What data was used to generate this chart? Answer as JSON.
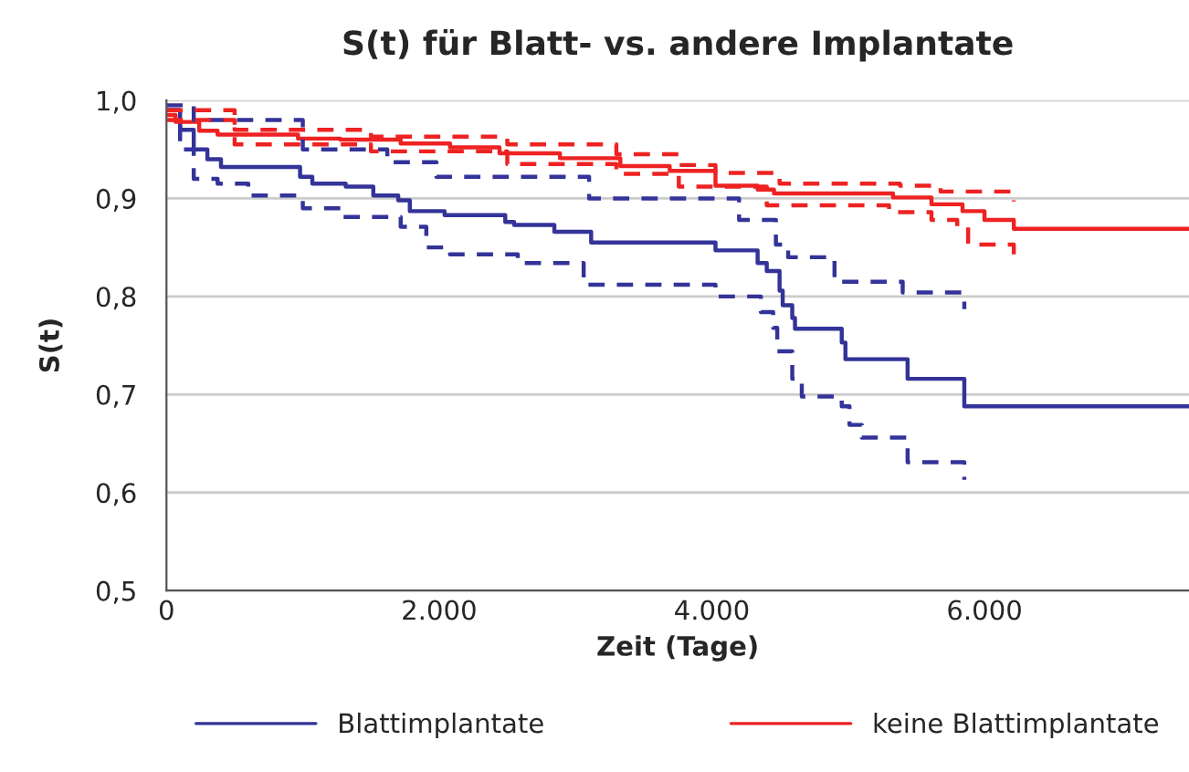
{
  "chart_data": {
    "type": "step",
    "title": "S(t) für Blatt- vs. andere Implantate",
    "xlabel": "Zeit (Tage)",
    "ylabel": "S(t)",
    "xlim": [
      0,
      7500
    ],
    "xticks": [
      0,
      {
        "value": 2000,
        "label": "2.000"
      },
      {
        "value": 4000,
        "label": "4.000"
      },
      {
        "value": 6000,
        "label": "6.000"
      }
    ],
    "ylim": [
      0.5,
      1.0
    ],
    "yticks": [
      {
        "value": 0.5,
        "label": "0,5"
      },
      {
        "value": 0.6,
        "label": "0,6"
      },
      {
        "value": 0.7,
        "label": "0,7"
      },
      {
        "value": 0.8,
        "label": "0,8"
      },
      {
        "value": 0.9,
        "label": "0,9"
      },
      {
        "value": 1.0,
        "label": "1,0"
      }
    ],
    "grid": "y",
    "legend": "bottom",
    "series": [
      {
        "name": "Blattimplantate",
        "color": "#333399",
        "line_style": "solid",
        "x": [
          0,
          100,
          200,
          300,
          400,
          980,
          1070,
          1315,
          1517,
          1700,
          1785,
          2040,
          2485,
          2550,
          2845,
          3115,
          4027,
          4336,
          4403,
          4497,
          4520,
          4590,
          4610,
          4953,
          4980,
          5436,
          5852,
          7500
        ],
        "values": [
          0.99,
          0.97,
          0.95,
          0.94,
          0.932,
          0.922,
          0.915,
          0.912,
          0.903,
          0.898,
          0.887,
          0.883,
          0.876,
          0.873,
          0.866,
          0.855,
          0.847,
          0.834,
          0.826,
          0.806,
          0.791,
          0.778,
          0.767,
          0.753,
          0.736,
          0.716,
          0.688,
          0.688
        ]
      },
      {
        "name": "keine Blattimplantate",
        "color": "#ee2222",
        "line_style": "solid",
        "x": [
          0,
          67,
          240,
          375,
          965,
          1275,
          1718,
          2080,
          2443,
          2886,
          3329,
          3691,
          4027,
          4336,
          4456,
          5329,
          5611,
          5839,
          6000,
          6215,
          7500
        ],
        "values": [
          0.985,
          0.978,
          0.969,
          0.965,
          0.961,
          0.96,
          0.956,
          0.952,
          0.946,
          0.941,
          0.933,
          0.928,
          0.913,
          0.909,
          0.905,
          0.901,
          0.894,
          0.887,
          0.878,
          0.869,
          0.869
        ]
      },
      {
        "color": "#333399",
        "line_style": "dashed",
        "x": [
          0,
          200,
          1000,
          1620,
          1980,
          3100,
          4200,
          4470,
          4560,
          4900,
          5400,
          5852
        ],
        "values": [
          0.995,
          0.98,
          0.95,
          0.937,
          0.922,
          0.9,
          0.878,
          0.853,
          0.84,
          0.815,
          0.804,
          0.787
        ]
      },
      {
        "color": "#333399",
        "line_style": "dashed",
        "x": [
          0,
          100,
          200,
          375,
          600,
          1000,
          1275,
          1718,
          1906,
          2080,
          2577,
          3060,
          4027,
          4360,
          4450,
          4480,
          4590,
          4660,
          4953,
          5010,
          5100,
          5436,
          5852
        ],
        "values": [
          0.99,
          0.95,
          0.92,
          0.915,
          0.903,
          0.89,
          0.881,
          0.871,
          0.85,
          0.843,
          0.834,
          0.812,
          0.8,
          0.784,
          0.768,
          0.744,
          0.716,
          0.698,
          0.688,
          0.669,
          0.656,
          0.631,
          0.613
        ]
      },
      {
        "color": "#ee2222",
        "line_style": "dashed",
        "x": [
          0,
          500,
          1500,
          2500,
          3300,
          3758,
          4027,
          4497,
          5380,
          5678,
          6215
        ],
        "values": [
          0.99,
          0.97,
          0.963,
          0.955,
          0.945,
          0.934,
          0.926,
          0.915,
          0.913,
          0.907,
          0.897
        ]
      },
      {
        "color": "#ee2222",
        "line_style": "dashed",
        "x": [
          0,
          500,
          1500,
          2500,
          3300,
          3758,
          4403,
          5300,
          5611,
          5800,
          5880,
          6215
        ],
        "values": [
          0.98,
          0.955,
          0.948,
          0.935,
          0.925,
          0.912,
          0.893,
          0.886,
          0.878,
          0.871,
          0.853,
          0.843
        ]
      }
    ]
  }
}
